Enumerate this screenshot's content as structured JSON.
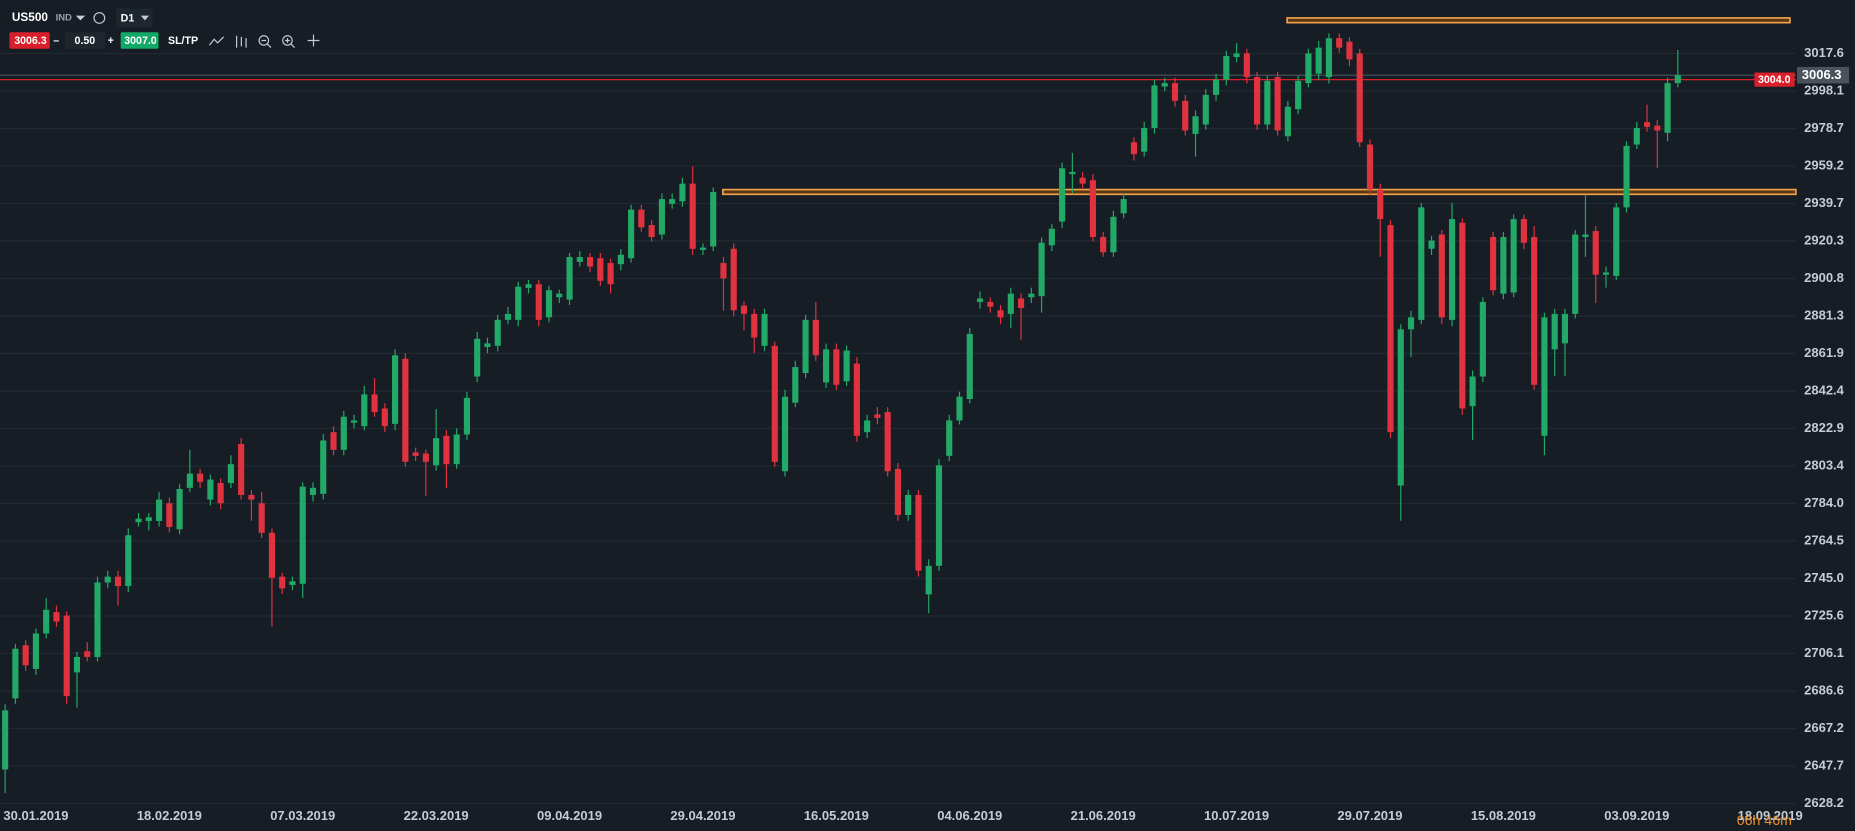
{
  "toolbar": {
    "symbol": "US500",
    "instrument_type": "IND",
    "timeframe": "D1",
    "sell_price": "3006.3",
    "minus": "–",
    "volume": "0.50",
    "plus": "+",
    "buy_price": "3007.0",
    "sl_tp": "SL/TP"
  },
  "countdown": "06h 46m",
  "chart_data": {
    "type": "candlestick",
    "categories": [
      null,
      null,
      null,
      "30.01.2019",
      null,
      null,
      null,
      null,
      null,
      null,
      null,
      null,
      null,
      null,
      null,
      null,
      "18.02.2019",
      null,
      null,
      null,
      null,
      null,
      null,
      null,
      null,
      null,
      null,
      null,
      null,
      "07.03.2019",
      null,
      null,
      null,
      null,
      null,
      null,
      null,
      null,
      null,
      null,
      null,
      null,
      "22.03.2019",
      null,
      null,
      null,
      null,
      null,
      null,
      null,
      null,
      null,
      null,
      null,
      null,
      "09.04.2019",
      null,
      null,
      null,
      null,
      null,
      null,
      null,
      null,
      null,
      null,
      null,
      null,
      "29.04.2019",
      null,
      null,
      null,
      null,
      null,
      null,
      null,
      null,
      null,
      null,
      null,
      null,
      "16.05.2019",
      null,
      null,
      null,
      null,
      null,
      null,
      null,
      null,
      null,
      null,
      null,
      null,
      "04.06.2019",
      null,
      null,
      null,
      null,
      null,
      null,
      null,
      null,
      null,
      null,
      null,
      null,
      "21.06.2019",
      null,
      null,
      null,
      null,
      null,
      null,
      null,
      null,
      null,
      null,
      null,
      null,
      "10.07.2019",
      null,
      null,
      null,
      null,
      null,
      null,
      null,
      null,
      null,
      null,
      null,
      null,
      "29.07.2019",
      null,
      null,
      null,
      null,
      null,
      null,
      null,
      null,
      null,
      null,
      null,
      null,
      "15.08.2019",
      null,
      null,
      null,
      null,
      null,
      null,
      null,
      null,
      null,
      null,
      null,
      null,
      "03.09.2019",
      null,
      null,
      null,
      null,
      null,
      null,
      null,
      null,
      null,
      null,
      null,
      null,
      "18.09.2019",
      null,
      null
    ],
    "open": [
      2645.9,
      2682.8,
      2710.4,
      2698.1,
      2716.5,
      2727.6,
      2725.8,
      2696.3,
      2707.3,
      2704.3,
      2743.0,
      2746.0,
      2741.1,
      2774.3,
      2774.9,
      2774.9,
      2784.1,
      2770.6,
      2792.1,
      2799.5,
      2786.0,
      2794.6,
      2794.6,
      2814.8,
      2788.4,
      2784.1,
      2768.8,
      2746.0,
      2741.7,
      2742.3,
      2788.4,
      2789.0,
      2821.0,
      2811.8,
      2825.9,
      2824.1,
      2840.6,
      2833.3,
      2825.3,
      2859.1,
      2810.5,
      2809.9,
      2803.8,
      2819.1,
      2804.4,
      2819.8,
      2849.9,
      2865.2,
      2865.8,
      2879.3,
      2879.3,
      2895.9,
      2897.8,
      2880.6,
      2891.0,
      2889.8,
      2909.4,
      2911.9,
      2911.3,
      2908.8,
      2908.2,
      2911.3,
      2936.5,
      2928.5,
      2923.6,
      2939.5,
      2940.8,
      2950.0,
      2915.6,
      2917.4,
      2908.8,
      2916.2,
      2886.7,
      2882.4,
      2865.8,
      2865.8,
      2800.7,
      2836.3,
      2851.7,
      2879.3,
      2846.8,
      2864.0,
      2847.4,
      2856.6,
      2821.0,
      2830.2,
      2831.4,
      2801.9,
      2778.0,
      2788.4,
      2736.8,
      2751.6,
      2808.7,
      2827.1,
      2838.2,
      2888.6,
      2888.6,
      2884.3,
      2882.4,
      2890.4,
      2891.0,
      2891.6,
      2918.0,
      2930.3,
      2954.9,
      2953.1,
      2951.8,
      2922.3,
      2914.4,
      2934.6,
      2971.5,
      2966.6,
      2978.9,
      3000.4,
      3002.2,
      2993.0,
      2975.8,
      2980.7,
      2996.1,
      3004.0,
      3015.7,
      3017.6,
      3005.3,
      2980.7,
      3005.3,
      2974.6,
      2988.7,
      3002.2,
      3007.1,
      3005.3,
      3025.5,
      3023.7,
      3017.6,
      2970.3,
      2946.9,
      2928.5,
      2793.3,
      2874.4,
      2879.3,
      2916.2,
      2923.6,
      2879.3,
      2929.7,
      2834.5,
      2849.9,
      2922.3,
      2892.9,
      2893.5,
      2931.6,
      2922.3,
      2819.1,
      2864.0,
      2867.1,
      2882.4,
      2922.3,
      2925.4,
      2902.7,
      2902.1,
      2937.7,
      2970.3,
      2981.9,
      2980.1,
      2976.4,
      3002.2,
      null,
      null,
      null,
      null,
      null,
      null,
      null,
      null,
      null,
      null,
      null
    ],
    "high": [
      2679.7,
      2711,
      2713,
      2719,
      2735,
      2731,
      2728,
      2707,
      2712,
      2746,
      2749,
      2749,
      2771,
      2779,
      2779,
      2790,
      2787,
      2794,
      2811.8,
      2802,
      2799,
      2797,
      2809,
      2818,
      2791,
      2790,
      2771,
      2748,
      2746,
      2795,
      2795,
      2820,
      2824,
      2832,
      2830,
      2845,
      2849,
      2836,
      2864,
      2862,
      2813,
      2812,
      2833,
      2822,
      2823,
      2842,
      2873,
      2870,
      2882,
      2886,
      2899,
      2900,
      2900,
      2897,
      2895,
      2914,
      2915,
      2914,
      2914,
      2911,
      2916,
      2939,
      2939,
      2931,
      2945,
      2945,
      2953,
      2959,
      2919,
      2948,
      2912,
      2919,
      2889,
      2885,
      2885,
      2868,
      2843,
      2858,
      2882,
      2888.6,
      2867,
      2867,
      2866,
      2860,
      2830,
      2834,
      2834,
      2805,
      2791,
      2791,
      2755,
      2807,
      2830,
      2842,
      2875,
      2894,
      2891,
      2887,
      2896,
      2893,
      2896,
      2922,
      2929,
      2961,
      2966,
      2956,
      2955,
      2925,
      2936,
      2945,
      2974,
      2982,
      3004,
      3005,
      3005,
      2996,
      2988,
      2999,
      3007,
      3019,
      3023,
      3020,
      3008,
      3006,
      3008,
      2993,
      3006,
      3020,
      3024,
      3028,
      3028,
      3026,
      3020,
      2973,
      2950,
      2931,
      2877,
      2884,
      2940,
      2923,
      2926,
      2940,
      2932,
      2853,
      2891,
      2925,
      2925,
      2934,
      2934,
      2928,
      2883,
      2885,
      2885,
      2926,
      2944,
      2928,
      2907,
      2940,
      2972,
      2982,
      2991,
      2983,
      3005,
      3019.4,
      null,
      null,
      null,
      null,
      null,
      null,
      null,
      null,
      null,
      null,
      null
    ],
    "low": [
      2633.6,
      2680,
      2697,
      2695,
      2714,
      2720,
      2680,
      2678,
      2702,
      2702,
      2740,
      2731,
      2738,
      2772,
      2770,
      2772,
      2769,
      2768,
      2790,
      2792,
      2783,
      2781,
      2792,
      2786,
      2775,
      2766,
      2720,
      2737,
      2739,
      2735,
      2785,
      2786,
      2809,
      2809,
      2823,
      2822,
      2829,
      2821,
      2822,
      2803,
      2806,
      2788,
      2801,
      2792,
      2802,
      2817,
      2847,
      2862,
      2863,
      2877,
      2876,
      2893,
      2876,
      2878,
      2888,
      2887,
      2907,
      2904,
      2897,
      2893,
      2905,
      2909,
      2925,
      2920,
      2921,
      2937,
      2938,
      2913,
      2913,
      2915,
      2884,
      2881,
      2874,
      2862,
      2863,
      2803,
      2798,
      2834,
      2849,
      2858,
      2844,
      2843,
      2845,
      2816,
      2818,
      2825,
      2798,
      2775,
      2775,
      2746,
      2727,
      2749,
      2806,
      2825,
      2836,
      2885,
      2883,
      2877,
      2875,
      2869,
      2888,
      2883,
      2915,
      2927,
      2945,
      2947,
      2920,
      2912,
      2912,
      2932,
      2962,
      2964,
      2976,
      2998,
      2990,
      2975,
      2964,
      2978,
      2993,
      3001,
      3013,
      3002,
      2978,
      2978,
      2975,
      2972,
      2986,
      3000,
      3004,
      3002,
      3018,
      3011,
      2969,
      2944,
      2912,
      2818,
      2775,
      2860,
      2877,
      2913,
      2877,
      2876,
      2830,
      2817,
      2847,
      2892,
      2890,
      2891,
      2916,
      2843,
      2809,
      2850,
      2850,
      2880,
      2912,
      2888,
      2896,
      2900,
      2935,
      2968,
      2977,
      2958,
      2972,
      3000,
      null,
      null,
      null,
      null,
      null,
      null,
      null,
      null,
      null,
      null,
      null
    ],
    "close": [
      2676.6,
      2708.6,
      2700.0,
      2716.5,
      2728.8,
      2722.7,
      2684.0,
      2704.3,
      2704.3,
      2743.0,
      2746.0,
      2741.1,
      2767.5,
      2776.1,
      2776.8,
      2786.0,
      2771.8,
      2791.5,
      2799.5,
      2795.2,
      2796.4,
      2784.1,
      2804.4,
      2788.4,
      2786.0,
      2768.8,
      2745.4,
      2739.9,
      2743.6,
      2792.7,
      2792.1,
      2816.7,
      2811.8,
      2829.0,
      2827.1,
      2840.6,
      2831.4,
      2824.1,
      2860.9,
      2805.6,
      2808.7,
      2805.6,
      2817.9,
      2804.4,
      2819.8,
      2838.8,
      2869.5,
      2867.1,
      2879.3,
      2882.4,
      2896.5,
      2897.8,
      2879.3,
      2894.7,
      2892.9,
      2911.9,
      2911.9,
      2907.0,
      2899.6,
      2897.8,
      2913.1,
      2936.5,
      2927.3,
      2922.3,
      2942.0,
      2942.0,
      2950.0,
      2916.2,
      2916.8,
      2945.7,
      2900.8,
      2884.3,
      2882.4,
      2870.1,
      2882.4,
      2805.6,
      2839.4,
      2854.8,
      2879.3,
      2860.9,
      2864.0,
      2845.6,
      2863.4,
      2819.1,
      2827.1,
      2828.4,
      2800.7,
      2778.0,
      2788.4,
      2749.1,
      2751.6,
      2803.8,
      2827.1,
      2839.4,
      2872.0,
      2890.4,
      2886.1,
      2880.6,
      2892.9,
      2885.5,
      2892.9,
      2919.3,
      2926.6,
      2958.0,
      2956.1,
      2950.0,
      2922.3,
      2914.4,
      2932.8,
      2942.0,
      2965.3,
      2978.9,
      3001.0,
      3002.2,
      2993.0,
      2977.6,
      2985.0,
      2996.1,
      3004.0,
      3016.3,
      3017.6,
      3005.3,
      2980.7,
      3003.4,
      2977.6,
      2989.9,
      3003.4,
      3017.6,
      3020.6,
      3025.5,
      3020.6,
      3014.5,
      2971.5,
      2946.9,
      2931.6,
      2821.0,
      2874.4,
      2880.6,
      2937.7,
      2920.5,
      2880.6,
      2931.6,
      2833.3,
      2849.9,
      2888.6,
      2894.7,
      2922.3,
      2931.6,
      2919.3,
      2845.6,
      2880.6,
      2882.4,
      2882.4,
      2923.6,
      2923.6,
      2902.7,
      2903.9,
      2937.7,
      2969.6,
      2978.9,
      2979.5,
      2977.6,
      3002.2,
      3006.3,
      null,
      null,
      null,
      null,
      null,
      null,
      null,
      null,
      null,
      null,
      null
    ],
    "up_color": "#22a867",
    "down_color": "#e0323f",
    "ylim": [
      2614.1,
      3045.2
    ],
    "yticks": [
      3017.6,
      2998.1,
      2978.7,
      2959.2,
      2939.7,
      2920.3,
      2900.8,
      2881.3,
      2861.9,
      2842.4,
      2822.9,
      2803.4,
      {
        "value": 2784,
        "label": "2784.0"
      },
      2764.5,
      {
        "value": 2745,
        "label": "2745.0"
      },
      2725.6,
      2706.1,
      2686.6,
      2667.2,
      2647.7,
      2628.2
    ],
    "grid": true,
    "levels": [
      2945.7,
      3034.8
    ],
    "level_color": "#f0a24a",
    "price_lines": [
      {
        "value": 3006.3,
        "color": "#4a535c"
      },
      {
        "value": 3004,
        "label": "3004.0",
        "color": "#d8202c"
      }
    ]
  }
}
